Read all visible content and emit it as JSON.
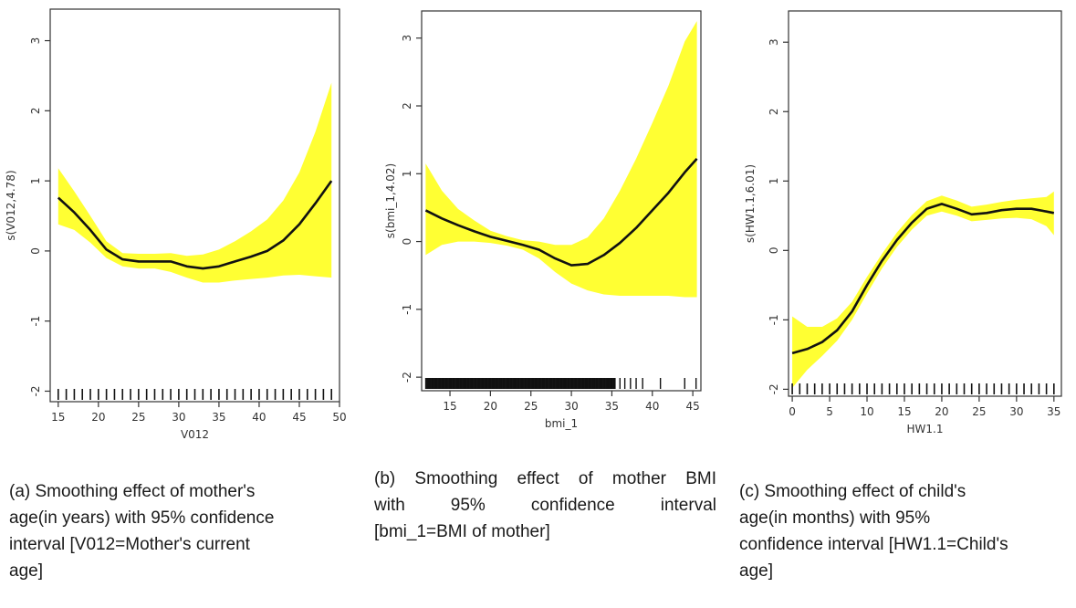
{
  "chart_data": [
    {
      "type": "line",
      "panel": "a",
      "xlabel": "V012",
      "ylabel": "s(V012,4.78)",
      "xlim": [
        14,
        50
      ],
      "ylim": [
        -2.15,
        3.45
      ],
      "x_ticks": [
        "15",
        "20",
        "25",
        "30",
        "35",
        "40",
        "45",
        "50"
      ],
      "y_ticks": [
        "-2",
        "-1",
        "0",
        "1",
        "2",
        "3"
      ],
      "series": [
        {
          "x": [
            15,
            17,
            19,
            21,
            23,
            25,
            27,
            29,
            31,
            33,
            35,
            37,
            39,
            41,
            43,
            45,
            47,
            49
          ],
          "y": [
            0.76,
            0.55,
            0.3,
            0.02,
            -0.12,
            -0.15,
            -0.15,
            -0.15,
            -0.22,
            -0.25,
            -0.22,
            -0.15,
            -0.08,
            0.0,
            0.15,
            0.38,
            0.68,
            1.0
          ],
          "lower": [
            0.38,
            0.3,
            0.12,
            -0.1,
            -0.22,
            -0.25,
            -0.25,
            -0.3,
            -0.38,
            -0.45,
            -0.45,
            -0.42,
            -0.4,
            -0.38,
            -0.35,
            -0.34,
            -0.36,
            -0.38
          ],
          "upper": [
            1.18,
            0.85,
            0.5,
            0.14,
            -0.03,
            -0.04,
            -0.04,
            -0.03,
            -0.07,
            -0.05,
            0.02,
            0.14,
            0.28,
            0.45,
            0.72,
            1.12,
            1.7,
            2.4
          ]
        }
      ],
      "rug": [
        15,
        16,
        17,
        18,
        19,
        20,
        21,
        22,
        23,
        24,
        25,
        26,
        27,
        28,
        29,
        30,
        31,
        32,
        33,
        34,
        35,
        36,
        37,
        38,
        39,
        40,
        41,
        42,
        43,
        44,
        45,
        46,
        47,
        48,
        49
      ]
    },
    {
      "type": "line",
      "panel": "b",
      "xlabel": "bmi_1",
      "ylabel": "s(bmi_1,4.02)",
      "xlim": [
        11.5,
        46
      ],
      "ylim": [
        -2.2,
        3.4
      ],
      "x_ticks": [
        "15",
        "20",
        "25",
        "30",
        "35",
        "40",
        "45"
      ],
      "y_ticks": [
        "-2",
        "-1",
        "0",
        "1",
        "2",
        "3"
      ],
      "series": [
        {
          "x": [
            12,
            14,
            16,
            18,
            20,
            22,
            24,
            26,
            28,
            30,
            32,
            34,
            36,
            38,
            40,
            42,
            44,
            45.5
          ],
          "y": [
            0.46,
            0.34,
            0.24,
            0.15,
            0.07,
            0.01,
            -0.05,
            -0.12,
            -0.25,
            -0.35,
            -0.33,
            -0.2,
            -0.02,
            0.2,
            0.46,
            0.72,
            1.02,
            1.22
          ],
          "lower": [
            -0.2,
            -0.05,
            0.0,
            0.0,
            -0.02,
            -0.06,
            -0.12,
            -0.25,
            -0.45,
            -0.62,
            -0.72,
            -0.78,
            -0.8,
            -0.8,
            -0.8,
            -0.8,
            -0.82,
            -0.82
          ],
          "upper": [
            1.15,
            0.75,
            0.48,
            0.31,
            0.16,
            0.08,
            0.02,
            0.0,
            -0.05,
            -0.05,
            0.06,
            0.34,
            0.75,
            1.22,
            1.75,
            2.3,
            2.95,
            3.25
          ]
        }
      ],
      "rug_range": [
        12,
        35.5
      ],
      "rug_extra": [
        36,
        36.6,
        37.3,
        38,
        38.8,
        41,
        44,
        45.4
      ]
    },
    {
      "type": "line",
      "panel": "c",
      "xlabel": "HW1.1",
      "ylabel": "s(HW1.1,6.01)",
      "xlim": [
        -0.5,
        36
      ],
      "ylim": [
        -2.1,
        3.45
      ],
      "x_ticks": [
        "0",
        "5",
        "10",
        "15",
        "20",
        "25",
        "30",
        "35"
      ],
      "y_ticks": [
        "-2",
        "-1",
        "0",
        "1",
        "2",
        "3"
      ],
      "series": [
        {
          "x": [
            0,
            2,
            4,
            6,
            8,
            10,
            12,
            14,
            16,
            18,
            20,
            22,
            24,
            26,
            28,
            30,
            32,
            34,
            35
          ],
          "y": [
            -1.48,
            -1.42,
            -1.32,
            -1.15,
            -0.88,
            -0.5,
            -0.15,
            0.15,
            0.4,
            0.6,
            0.67,
            0.6,
            0.52,
            0.54,
            0.58,
            0.6,
            0.6,
            0.56,
            0.54
          ],
          "lower": [
            -1.98,
            -1.72,
            -1.52,
            -1.3,
            -1.0,
            -0.62,
            -0.26,
            0.05,
            0.3,
            0.5,
            0.56,
            0.5,
            0.42,
            0.44,
            0.46,
            0.47,
            0.45,
            0.35,
            0.22
          ],
          "upper": [
            -0.95,
            -1.1,
            -1.1,
            -0.98,
            -0.74,
            -0.38,
            -0.05,
            0.26,
            0.51,
            0.71,
            0.79,
            0.72,
            0.63,
            0.66,
            0.7,
            0.73,
            0.75,
            0.77,
            0.85
          ]
        }
      ],
      "rug": [
        0,
        1,
        2,
        3,
        4,
        5,
        6,
        7,
        8,
        9,
        10,
        11,
        12,
        13,
        14,
        15,
        16,
        17,
        18,
        19,
        20,
        21,
        22,
        23,
        24,
        25,
        26,
        27,
        28,
        29,
        30,
        31,
        32,
        33,
        34,
        35
      ]
    }
  ],
  "captions": {
    "a": [
      "(a) Smoothing effect of mother's",
      "age(in years) with 95% confidence",
      "interval [V012=Mother's current",
      "age]"
    ],
    "b": [
      "(b) Smoothing effect of mother BMI",
      "with 95% confidence interval",
      "[bmi_1=BMI of mother]"
    ],
    "c": [
      "(c) Smoothing effect of child's",
      "age(in months) with 95%",
      "confidence interval [HW1.1=Child's",
      "age]"
    ]
  },
  "colors": {
    "band": "#ffff33",
    "line": "#111111",
    "axis": "#333333"
  }
}
